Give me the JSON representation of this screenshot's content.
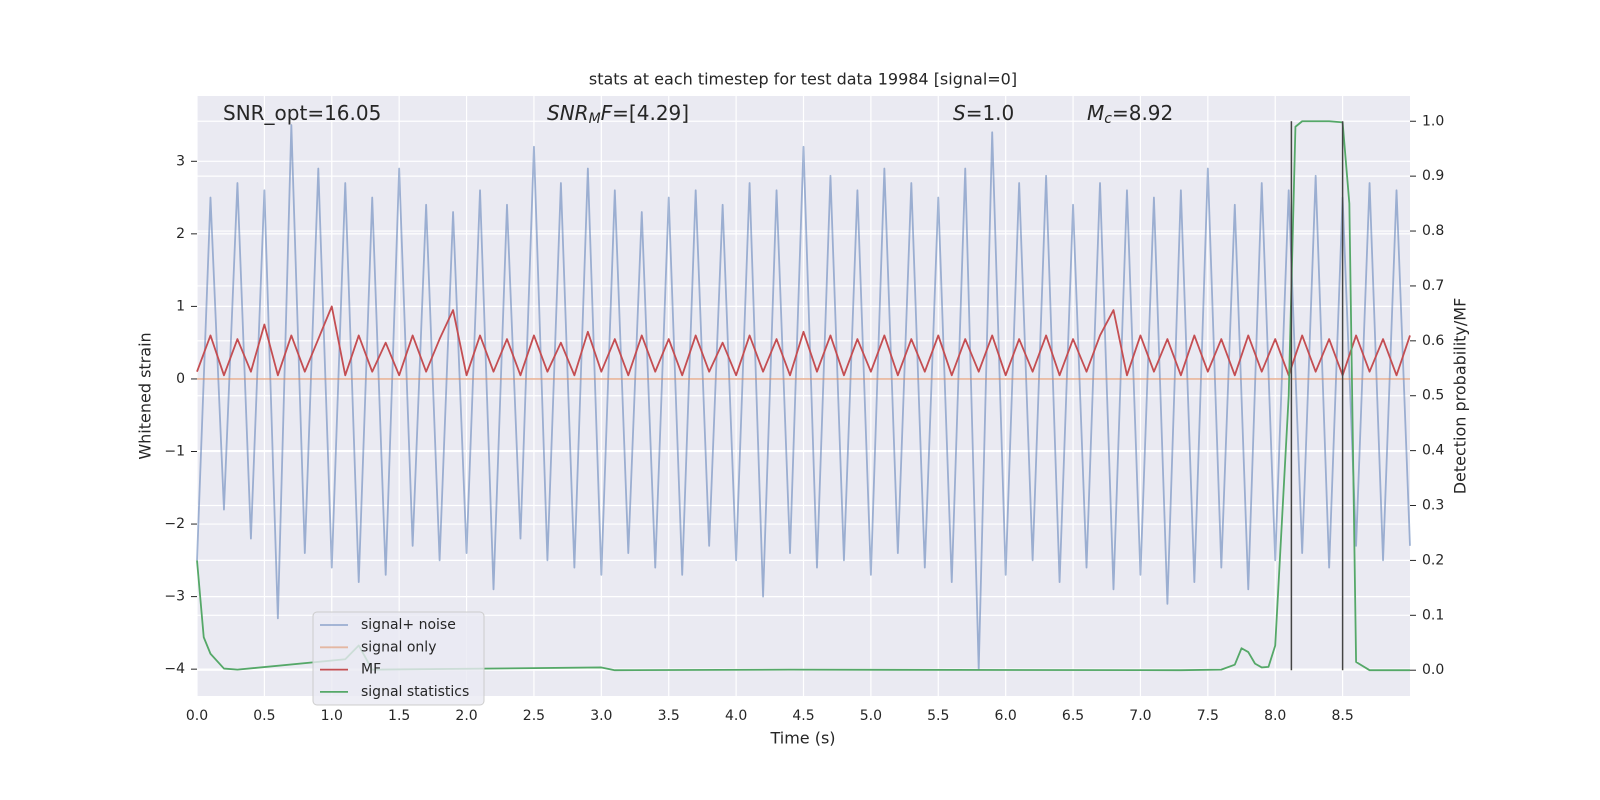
{
  "chart_data": {
    "type": "line",
    "title": "stats at each timestep for test data 19984 [signal=0]",
    "xlabel": "Time (s)",
    "ylabel": "Whitened strain",
    "y2label": "Detection probability/MF",
    "xlim": [
      0,
      9
    ],
    "ylim": [
      -4.37,
      3.9
    ],
    "y2lim": [
      -0.047,
      1.046
    ],
    "xticks": [
      {
        "value": 0,
        "label": "0.0"
      },
      0.5,
      {
        "value": 1,
        "label": "1.0"
      },
      1.5,
      {
        "value": 2,
        "label": "2.0"
      },
      2.5,
      {
        "value": 3,
        "label": "3.0"
      },
      3.5,
      {
        "value": 4,
        "label": "4.0"
      },
      4.5,
      {
        "value": 5,
        "label": "5.0"
      },
      5.5,
      {
        "value": 6,
        "label": "6.0"
      },
      6.5,
      {
        "value": 7,
        "label": "7.0"
      },
      7.5,
      {
        "value": 8,
        "label": "8.0"
      },
      8.5
    ],
    "yticks": [
      {
        "value": -4,
        "label": "−4"
      },
      {
        "value": -3,
        "label": "−3"
      },
      {
        "value": -2,
        "label": "−2"
      },
      {
        "value": -1,
        "label": "−1"
      },
      0,
      1,
      2,
      3
    ],
    "y2ticks": [
      {
        "value": 0,
        "label": "0.0"
      },
      0.1,
      0.2,
      0.3,
      0.4,
      0.5,
      0.6,
      0.7,
      0.8,
      0.9,
      {
        "value": 1,
        "label": "1.0"
      }
    ],
    "grid": true,
    "legend": "lower left",
    "series": [
      {
        "name": "signal+ noise",
        "color": "#4c72b0",
        "opacity": 0.5,
        "x": [
          0.0,
          0.1,
          0.2,
          0.3,
          0.4,
          0.5,
          0.6,
          0.7,
          0.8,
          0.9,
          1.0,
          1.1,
          1.2,
          1.3,
          1.4,
          1.5,
          1.6,
          1.7,
          1.8,
          1.9,
          2.0,
          2.1,
          2.2,
          2.3,
          2.4,
          2.5,
          2.6,
          2.7,
          2.8,
          2.9,
          3.0,
          3.1,
          3.2,
          3.3,
          3.4,
          3.5,
          3.6,
          3.7,
          3.8,
          3.9,
          4.0,
          4.1,
          4.2,
          4.3,
          4.4,
          4.5,
          4.6,
          4.7,
          4.8,
          4.9,
          5.0,
          5.1,
          5.2,
          5.3,
          5.4,
          5.5,
          5.6,
          5.7,
          5.8,
          5.9,
          6.0,
          6.1,
          6.2,
          6.3,
          6.4,
          6.5,
          6.6,
          6.7,
          6.8,
          6.9,
          7.0,
          7.1,
          7.2,
          7.3,
          7.4,
          7.5,
          7.6,
          7.7,
          7.8,
          7.9,
          8.0,
          8.1,
          8.2,
          8.3,
          8.4,
          8.5,
          8.6,
          8.7,
          8.8,
          8.9,
          9.0
        ],
        "values": [
          -2.5,
          2.5,
          -1.8,
          2.7,
          -2.2,
          2.6,
          -3.3,
          3.5,
          -2.4,
          2.9,
          -2.6,
          2.7,
          -2.8,
          2.5,
          -2.7,
          2.9,
          -2.3,
          2.4,
          -2.5,
          2.3,
          -2.4,
          2.6,
          -2.9,
          2.4,
          -2.2,
          3.2,
          -2.5,
          2.7,
          -2.6,
          2.9,
          -2.7,
          2.6,
          -2.4,
          2.3,
          -2.6,
          2.5,
          -2.7,
          2.6,
          -2.3,
          2.4,
          -2.5,
          2.7,
          -3.0,
          2.6,
          -2.4,
          3.2,
          -2.6,
          2.8,
          -2.5,
          2.6,
          -2.7,
          2.9,
          -2.4,
          2.7,
          -2.6,
          2.5,
          -2.8,
          2.9,
          -4.0,
          3.4,
          -2.7,
          2.7,
          -2.5,
          2.8,
          -2.8,
          2.4,
          -2.6,
          2.7,
          -2.9,
          2.6,
          -2.7,
          2.5,
          -3.1,
          2.6,
          -2.8,
          2.9,
          -2.6,
          2.4,
          -2.9,
          2.7,
          -2.5,
          2.6,
          -2.4,
          2.8,
          -2.6,
          2.5,
          -2.3,
          2.7,
          -2.5,
          2.6,
          -2.3
        ]
      },
      {
        "name": "signal only",
        "color": "#dd8452",
        "opacity": 0.5,
        "x": [
          0,
          9
        ],
        "values": [
          0,
          0
        ]
      },
      {
        "name": "MF",
        "color": "#c44e52",
        "opacity": 1,
        "x": [
          0.0,
          0.1,
          0.2,
          0.3,
          0.4,
          0.5,
          0.6,
          0.7,
          0.8,
          0.9,
          1.0,
          1.1,
          1.2,
          1.3,
          1.4,
          1.5,
          1.6,
          1.7,
          1.8,
          1.9,
          2.0,
          2.1,
          2.2,
          2.3,
          2.4,
          2.5,
          2.6,
          2.7,
          2.8,
          2.9,
          3.0,
          3.1,
          3.2,
          3.3,
          3.4,
          3.5,
          3.6,
          3.7,
          3.8,
          3.9,
          4.0,
          4.1,
          4.2,
          4.3,
          4.4,
          4.5,
          4.6,
          4.7,
          4.8,
          4.9,
          5.0,
          5.1,
          5.2,
          5.3,
          5.4,
          5.5,
          5.6,
          5.7,
          5.8,
          5.9,
          6.0,
          6.1,
          6.2,
          6.3,
          6.4,
          6.5,
          6.6,
          6.7,
          6.8,
          6.9,
          7.0,
          7.1,
          7.2,
          7.3,
          7.4,
          7.5,
          7.6,
          7.7,
          7.8,
          7.9,
          8.0,
          8.1,
          8.2,
          8.3,
          8.4,
          8.5,
          8.6,
          8.7,
          8.8,
          8.9,
          9.0
        ],
        "values": [
          0.1,
          0.6,
          0.05,
          0.55,
          0.1,
          0.75,
          0.05,
          0.6,
          0.1,
          0.55,
          1.0,
          0.05,
          0.6,
          0.1,
          0.5,
          0.05,
          0.6,
          0.1,
          0.55,
          0.95,
          0.05,
          0.6,
          0.1,
          0.55,
          0.05,
          0.6,
          0.1,
          0.5,
          0.05,
          0.65,
          0.1,
          0.55,
          0.05,
          0.6,
          0.1,
          0.55,
          0.05,
          0.6,
          0.1,
          0.5,
          0.05,
          0.6,
          0.1,
          0.55,
          0.05,
          0.65,
          0.1,
          0.6,
          0.05,
          0.55,
          0.1,
          0.6,
          0.05,
          0.55,
          0.1,
          0.6,
          0.05,
          0.55,
          0.1,
          0.6,
          0.05,
          0.55,
          0.1,
          0.6,
          0.05,
          0.55,
          0.1,
          0.6,
          0.95,
          0.05,
          0.6,
          0.1,
          0.55,
          0.05,
          0.6,
          0.1,
          0.55,
          0.05,
          0.6,
          0.1,
          0.55,
          0.05,
          0.6,
          0.1,
          0.55,
          0.05,
          0.6,
          0.1,
          0.55,
          0.05,
          0.6
        ]
      },
      {
        "name": "signal statistics",
        "color": "#55a868",
        "opacity": 1,
        "axis": "y2",
        "x": [
          0.0,
          0.05,
          0.1,
          0.2,
          0.3,
          1.1,
          1.2,
          1.3,
          3.0,
          3.1,
          4.4,
          7.3,
          7.6,
          7.7,
          7.75,
          7.8,
          7.85,
          7.9,
          7.95,
          8.0,
          8.1,
          8.15,
          8.2,
          8.3,
          8.4,
          8.5,
          8.55,
          8.6,
          8.7,
          9.0
        ],
        "values": [
          0.2,
          0.06,
          0.03,
          0.003,
          0.001,
          0.02,
          0.045,
          0.001,
          0.005,
          0.0,
          0.001,
          0.0,
          0.001,
          0.01,
          0.04,
          0.033,
          0.012,
          0.005,
          0.006,
          0.045,
          0.5,
          0.99,
          1.0,
          1.0,
          1.0,
          0.998,
          0.85,
          0.015,
          0.0,
          0.0
        ]
      }
    ],
    "vlines": [
      {
        "x": 8.12,
        "y2min": 0,
        "y2max": 1
      },
      {
        "x": 8.5,
        "y2min": 0,
        "y2max": 1
      }
    ],
    "annotations": [
      {
        "parts": [
          {
            "text": "SNR_opt=16.05",
            "style": "normal"
          }
        ]
      },
      {
        "parts": [
          {
            "text": "SNR",
            "style": "italic"
          },
          {
            "text": "M",
            "style": "sub"
          },
          {
            "text": "F",
            "style": "italic"
          },
          {
            "text": "=[4.29]",
            "style": "normal"
          }
        ]
      },
      {
        "parts": [
          {
            "text": "S",
            "style": "italic"
          },
          {
            "text": "=1.0",
            "style": "normal"
          }
        ]
      },
      {
        "parts": [
          {
            "text": "M",
            "style": "italic"
          },
          {
            "text": "c",
            "style": "sub"
          },
          {
            "text": "=8.92",
            "style": "normal"
          }
        ]
      }
    ]
  }
}
